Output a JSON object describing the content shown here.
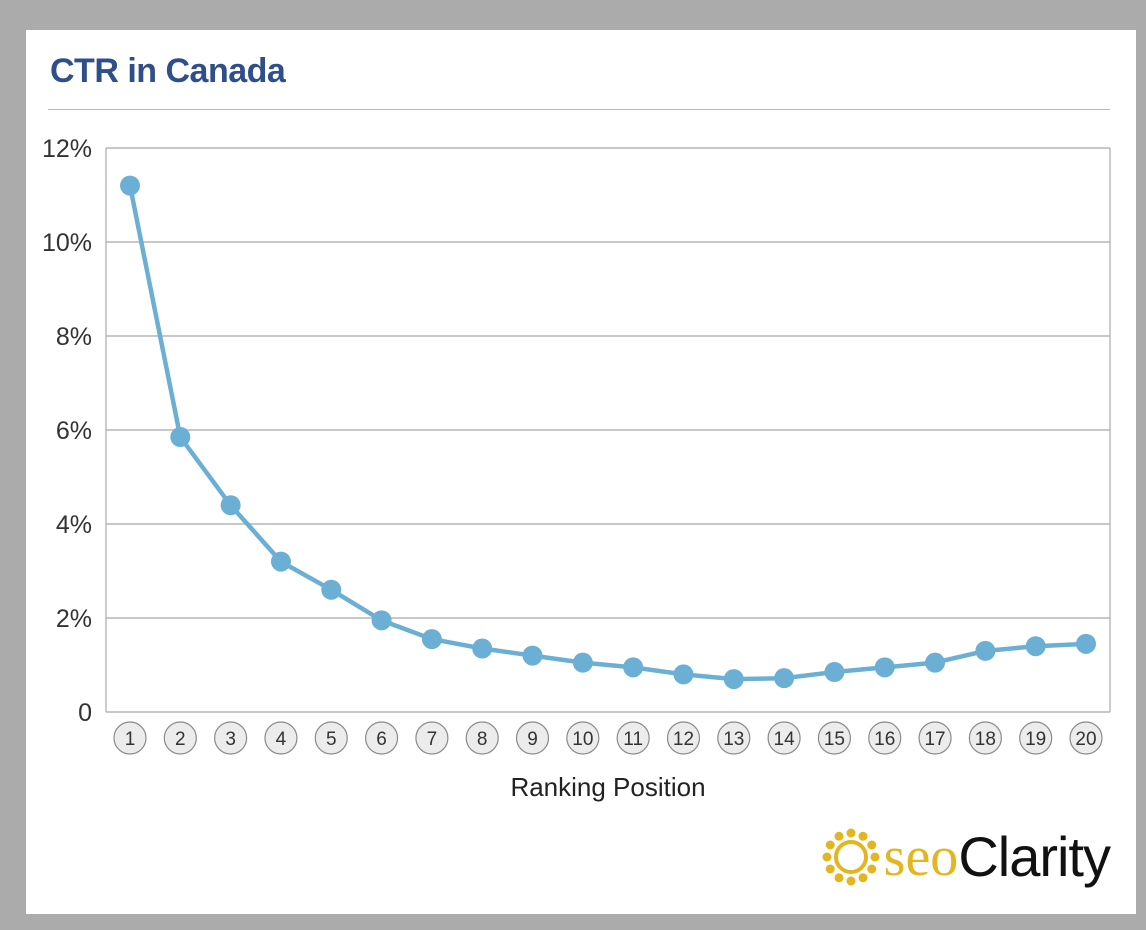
{
  "colors": {
    "title": "#2f4f8a",
    "line": "#6bb0d4",
    "grid": "#b5b5b5",
    "logo_gold": "#e3b51e",
    "logo_dark": "#111111"
  },
  "logo": {
    "part1": "seo",
    "part2": "Clarity",
    "icon": "sun-gear-icon"
  },
  "chart_data": {
    "type": "line",
    "title": "CTR in Canada",
    "xlabel": "Ranking Position",
    "ylabel": "",
    "x": [
      1,
      2,
      3,
      4,
      5,
      6,
      7,
      8,
      9,
      10,
      11,
      12,
      13,
      14,
      15,
      16,
      17,
      18,
      19,
      20
    ],
    "series": [
      {
        "values": [
          11.2,
          5.85,
          4.4,
          3.2,
          2.6,
          1.95,
          1.55,
          1.35,
          1.2,
          1.05,
          0.95,
          0.8,
          0.7,
          0.72,
          0.85,
          0.95,
          1.05,
          1.3,
          1.4,
          1.45
        ]
      }
    ],
    "ylim": [
      0,
      12
    ],
    "yticks": [
      0,
      2,
      4,
      6,
      8,
      10,
      12
    ],
    "ytick_labels": [
      "0",
      "2%",
      "4%",
      "6%",
      "8%",
      "10%",
      "12%"
    ],
    "xtick_labels": [
      "1",
      "2",
      "3",
      "4",
      "5",
      "6",
      "7",
      "8",
      "9",
      "10",
      "11",
      "12",
      "13",
      "14",
      "15",
      "16",
      "17",
      "18",
      "19",
      "20"
    ],
    "grid": true,
    "legend": "none"
  }
}
